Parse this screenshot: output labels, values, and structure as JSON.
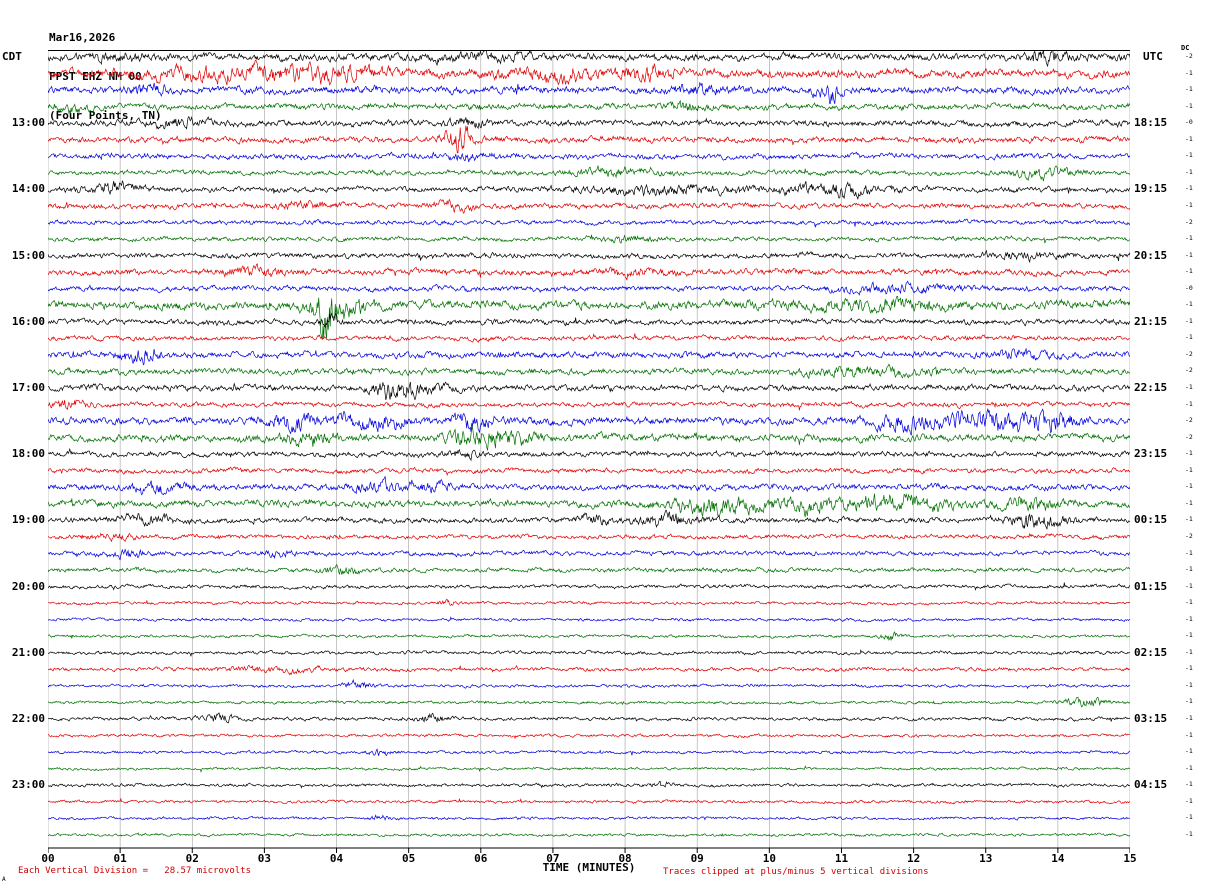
{
  "header": {
    "date": "Mar16,2026",
    "station": "FPST EHZ NM 00",
    "location": "(Four Points, TN)"
  },
  "axes": {
    "left_title": "CDT",
    "right_title": "UTC",
    "dc_label": "DC"
  },
  "x_axis": {
    "title": "TIME (MINUTES)",
    "ticks": [
      "00",
      "01",
      "02",
      "03",
      "04",
      "05",
      "06",
      "07",
      "08",
      "09",
      "10",
      "11",
      "12",
      "13",
      "14",
      "15"
    ]
  },
  "footer": {
    "scale_note": "Each Vertical Division =   28.57 microvolts",
    "clip_note": "Traces clipped at plus/minus 5 vertical divisions",
    "corner_mark": "A"
  },
  "chart_data": {
    "type": "line",
    "description": "Helicorder (webicorder) seismogram, 48 traces of 15 minutes each, 12:00-23:45 CDT (17:15-04:15 UTC), colors cycle black/red/blue/green; amplitude values are relative noise levels per trace with burst events [minute, width_min, extra_amp]",
    "xlabel": "TIME (MINUTES)",
    "x_range": [
      0,
      15
    ],
    "minutes_per_line": 15,
    "trace_colors": [
      "#000000",
      "#e00000",
      "#0000dd",
      "#007000"
    ],
    "rows": [
      {
        "l": "",
        "r": "",
        "dc": "-2",
        "a": 3.0,
        "b": [
          [
            1.0,
            0.3,
            2
          ],
          [
            6.0,
            0.5,
            2
          ],
          [
            13.9,
            0.2,
            4
          ]
        ]
      },
      {
        "l": "",
        "r": "",
        "dc": "-1",
        "a": 3.5,
        "b": [
          [
            2.5,
            0.8,
            4
          ],
          [
            4.0,
            0.5,
            4
          ],
          [
            7.0,
            0.6,
            3
          ],
          [
            8.3,
            0.3,
            4
          ]
        ]
      },
      {
        "l": "",
        "r": "",
        "dc": "-1",
        "a": 3.0,
        "b": [
          [
            1.4,
            0.2,
            3
          ],
          [
            9.0,
            0.3,
            3
          ],
          [
            10.8,
            0.15,
            6
          ]
        ]
      },
      {
        "l": "",
        "r": "",
        "dc": "-1",
        "a": 2.5,
        "b": [
          [
            0.3,
            0.2,
            3
          ],
          [
            8.8,
            0.2,
            3
          ]
        ]
      },
      {
        "l": "13:00",
        "r": "18:15",
        "dc": "-0",
        "a": 2.5,
        "b": [
          [
            1.8,
            0.3,
            3
          ],
          [
            5.8,
            0.2,
            3
          ]
        ]
      },
      {
        "l": "",
        "r": "",
        "dc": "-1",
        "a": 2.5,
        "b": [
          [
            5.7,
            0.12,
            12
          ]
        ]
      },
      {
        "l": "",
        "r": "",
        "dc": "-1",
        "a": 2.2,
        "b": [
          [
            5.8,
            0.3,
            2
          ]
        ]
      },
      {
        "l": "",
        "r": "",
        "dc": "-1",
        "a": 2.0,
        "b": [
          [
            7.8,
            0.4,
            3
          ],
          [
            13.8,
            0.3,
            4
          ]
        ]
      },
      {
        "l": "14:00",
        "r": "19:15",
        "dc": "-1",
        "a": 2.2,
        "b": [
          [
            0.9,
            0.25,
            5
          ],
          [
            8.5,
            0.8,
            3
          ],
          [
            10.9,
            0.5,
            4
          ]
        ]
      },
      {
        "l": "",
        "r": "",
        "dc": "-1",
        "a": 2.2,
        "b": [
          [
            3.5,
            0.3,
            2
          ],
          [
            5.6,
            0.2,
            3
          ]
        ]
      },
      {
        "l": "",
        "r": "",
        "dc": "-2",
        "a": 1.8,
        "b": []
      },
      {
        "l": "",
        "r": "",
        "dc": "-1",
        "a": 1.8,
        "b": [
          [
            8.0,
            0.3,
            2
          ]
        ]
      },
      {
        "l": "15:00",
        "r": "20:15",
        "dc": "-1",
        "a": 2.2,
        "b": [
          [
            13.5,
            0.4,
            2
          ]
        ]
      },
      {
        "l": "",
        "r": "",
        "dc": "-1",
        "a": 2.5,
        "b": [
          [
            2.9,
            0.3,
            3
          ],
          [
            8.2,
            0.4,
            2
          ]
        ]
      },
      {
        "l": "",
        "r": "",
        "dc": "-0",
        "a": 2.2,
        "b": [
          [
            11.8,
            0.5,
            3
          ]
        ]
      },
      {
        "l": "",
        "r": "",
        "dc": "-1",
        "a": 3.5,
        "b": [
          [
            3.85,
            0.12,
            16
          ],
          [
            4.1,
            0.3,
            5
          ],
          [
            11.5,
            0.8,
            3
          ]
        ]
      },
      {
        "l": "16:00",
        "r": "21:15",
        "dc": "-1",
        "a": 2.2,
        "b": [
          [
            3.9,
            0.1,
            6
          ]
        ]
      },
      {
        "l": "",
        "r": "",
        "dc": "-1",
        "a": 2.0,
        "b": []
      },
      {
        "l": "",
        "r": "",
        "dc": "-2",
        "a": 2.5,
        "b": [
          [
            1.3,
            0.2,
            5
          ],
          [
            13.5,
            0.3,
            3
          ]
        ]
      },
      {
        "l": "",
        "r": "",
        "dc": "-2",
        "a": 2.5,
        "b": [
          [
            11.3,
            0.6,
            3
          ]
        ]
      },
      {
        "l": "17:00",
        "r": "22:15",
        "dc": "-1",
        "a": 2.5,
        "b": [
          [
            4.8,
            0.2,
            6
          ],
          [
            5.1,
            0.3,
            3
          ]
        ]
      },
      {
        "l": "",
        "r": "",
        "dc": "-1",
        "a": 2.0,
        "b": [
          [
            0.3,
            0.2,
            3
          ]
        ]
      },
      {
        "l": "",
        "r": "",
        "dc": "-2",
        "a": 3.0,
        "b": [
          [
            3.4,
            0.25,
            6
          ],
          [
            4.5,
            0.3,
            6
          ],
          [
            5.9,
            0.2,
            6
          ],
          [
            11.9,
            0.4,
            5
          ],
          [
            13.1,
            0.5,
            6
          ],
          [
            13.9,
            0.3,
            6
          ]
        ]
      },
      {
        "l": "",
        "r": "",
        "dc": "-2",
        "a": 3.0,
        "b": [
          [
            3.6,
            0.3,
            4
          ],
          [
            5.9,
            0.25,
            6
          ],
          [
            6.4,
            0.3,
            4
          ]
        ]
      },
      {
        "l": "18:00",
        "r": "23:15",
        "dc": "-1",
        "a": 2.2,
        "b": [
          [
            5.8,
            0.15,
            3
          ]
        ]
      },
      {
        "l": "",
        "r": "",
        "dc": "-1",
        "a": 2.0,
        "b": []
      },
      {
        "l": "",
        "r": "",
        "dc": "-1",
        "a": 2.5,
        "b": [
          [
            1.5,
            0.3,
            4
          ],
          [
            4.6,
            0.3,
            3
          ],
          [
            5.3,
            0.2,
            4
          ]
        ]
      },
      {
        "l": "",
        "r": "",
        "dc": "-1",
        "a": 2.8,
        "b": [
          [
            9.2,
            0.5,
            6
          ],
          [
            10.5,
            0.3,
            4
          ],
          [
            11.7,
            0.6,
            5
          ],
          [
            13.6,
            0.3,
            4
          ]
        ]
      },
      {
        "l": "19:00",
        "r": "00:15",
        "dc": "-1",
        "a": 2.2,
        "b": [
          [
            1.4,
            0.3,
            3
          ],
          [
            7.6,
            0.2,
            3
          ],
          [
            8.6,
            0.3,
            4
          ],
          [
            13.7,
            0.3,
            5
          ]
        ]
      },
      {
        "l": "",
        "r": "",
        "dc": "-2",
        "a": 1.8,
        "b": [
          [
            0.9,
            0.2,
            3
          ]
        ]
      },
      {
        "l": "",
        "r": "",
        "dc": "-1",
        "a": 1.8,
        "b": [
          [
            1.1,
            0.2,
            3
          ],
          [
            3.2,
            0.2,
            2
          ]
        ]
      },
      {
        "l": "",
        "r": "",
        "dc": "-1",
        "a": 1.8,
        "b": [
          [
            4.1,
            0.2,
            3
          ]
        ]
      },
      {
        "l": "20:00",
        "r": "01:15",
        "dc": "-1",
        "a": 1.5,
        "b": []
      },
      {
        "l": "",
        "r": "",
        "dc": "-1",
        "a": 1.2,
        "b": [
          [
            5.5,
            0.1,
            2
          ]
        ]
      },
      {
        "l": "",
        "r": "",
        "dc": "-1",
        "a": 1.2,
        "b": []
      },
      {
        "l": "",
        "r": "",
        "dc": "-1",
        "a": 1.2,
        "b": [
          [
            11.7,
            0.1,
            3
          ]
        ]
      },
      {
        "l": "21:00",
        "r": "02:15",
        "dc": "-1",
        "a": 1.4,
        "b": []
      },
      {
        "l": "",
        "r": "",
        "dc": "-1",
        "a": 1.5,
        "b": [
          [
            2.8,
            0.4,
            1.5
          ],
          [
            3.5,
            0.3,
            1.5
          ]
        ]
      },
      {
        "l": "",
        "r": "",
        "dc": "-1",
        "a": 1.2,
        "b": [
          [
            4.3,
            0.15,
            3
          ]
        ]
      },
      {
        "l": "",
        "r": "",
        "dc": "-1",
        "a": 1.2,
        "b": [
          [
            14.4,
            0.2,
            4
          ]
        ]
      },
      {
        "l": "22:00",
        "r": "03:15",
        "dc": "-1",
        "a": 1.4,
        "b": [
          [
            2.4,
            0.15,
            3
          ],
          [
            5.3,
            0.15,
            3
          ]
        ]
      },
      {
        "l": "",
        "r": "",
        "dc": "-1",
        "a": 1.2,
        "b": []
      },
      {
        "l": "",
        "r": "",
        "dc": "-1",
        "a": 1.2,
        "b": [
          [
            4.6,
            0.1,
            3
          ]
        ]
      },
      {
        "l": "",
        "r": "",
        "dc": "-1",
        "a": 1.1,
        "b": []
      },
      {
        "l": "23:00",
        "r": "04:15",
        "dc": "-1",
        "a": 1.3,
        "b": [
          [
            8.5,
            0.1,
            2
          ]
        ]
      },
      {
        "l": "",
        "r": "",
        "dc": "-1",
        "a": 1.2,
        "b": []
      },
      {
        "l": "",
        "r": "",
        "dc": "-1",
        "a": 1.1,
        "b": [
          [
            4.6,
            0.1,
            2
          ]
        ]
      },
      {
        "l": "",
        "r": "",
        "dc": "-1",
        "a": 1.1,
        "b": []
      }
    ]
  }
}
